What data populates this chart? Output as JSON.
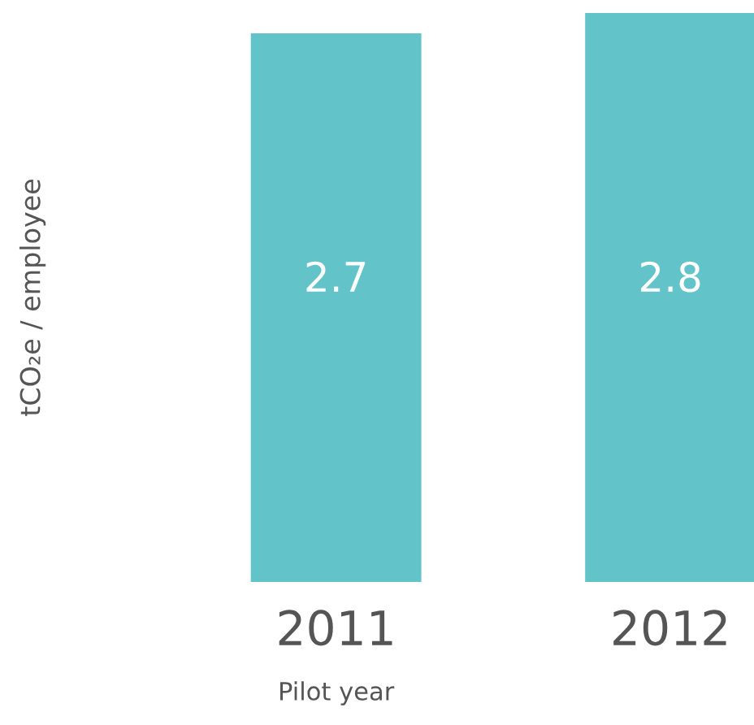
{
  "chart_data": {
    "type": "bar",
    "ylabel": "tCO₂e / employee",
    "categories": [
      "2011",
      "2012"
    ],
    "values": [
      2.7,
      2.8
    ],
    "color": "#62c3c8",
    "data_labels": true,
    "grid": false,
    "legend": false,
    "annotations": [
      "Pilot year"
    ]
  }
}
